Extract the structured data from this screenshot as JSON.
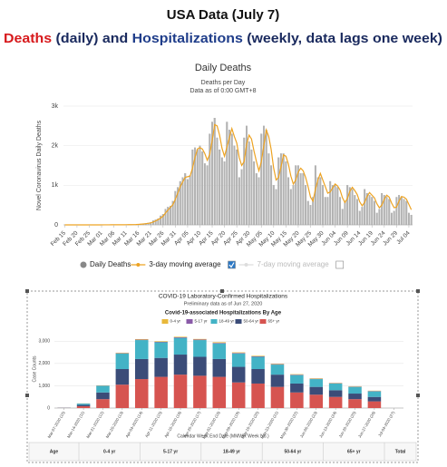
{
  "header": {
    "title": "USA Data (July 7)",
    "subtitle": [
      {
        "text": "Deaths",
        "color": "#d7191c"
      },
      {
        "text": " (daily) and ",
        "color": "#1a2a5e"
      },
      {
        "text": "Hospitalizations",
        "color": "#1f3d8a"
      },
      {
        "text": " (weekly, data lags one week)",
        "color": "#1a2a5e"
      }
    ]
  },
  "chart_data": [
    {
      "type": "bar",
      "title": "Daily Deaths",
      "subtitle": "Deaths per Day",
      "note": "Data as of 0:00 GMT+8",
      "y_label": "Novel Coronavirus Daily Deaths",
      "categories": [
        "Feb 15",
        null,
        null,
        null,
        null,
        "Feb 20",
        null,
        null,
        null,
        null,
        "Feb 25",
        null,
        null,
        null,
        null,
        "Mar 01",
        null,
        null,
        null,
        null,
        "Mar 06",
        null,
        null,
        null,
        null,
        "Mar 11",
        null,
        null,
        null,
        null,
        "Mar 16",
        null,
        null,
        null,
        null,
        "Mar 21",
        null,
        null,
        null,
        null,
        "Mar 26",
        null,
        null,
        null,
        null,
        "Mar 31",
        null,
        null,
        null,
        null,
        "Apr 05",
        null,
        null,
        null,
        null,
        "Apr 10",
        null,
        null,
        null,
        null,
        "Apr 15",
        null,
        null,
        null,
        null,
        "Apr 20",
        null,
        null,
        null,
        null,
        "Apr 25",
        null,
        null,
        null,
        null,
        "Apr 30",
        null,
        null,
        null,
        null,
        "May 05",
        null,
        null,
        null,
        null,
        "May 10",
        null,
        null,
        null,
        null,
        "May 15",
        null,
        null,
        null,
        null,
        "May 20",
        null,
        null,
        null,
        null,
        "May 25",
        null,
        null,
        null,
        null,
        "May 30",
        null,
        null,
        null,
        null,
        "Jun 04",
        null,
        null,
        null,
        null,
        "Jun 09",
        null,
        null,
        null,
        null,
        "Jun 14",
        null,
        null,
        null,
        null,
        "Jun 19",
        null,
        null,
        null,
        null,
        "Jun 24",
        null,
        null,
        null,
        null,
        "Jun 29",
        null,
        null,
        null,
        null,
        "Jul 04",
        null
      ],
      "series": [
        {
          "name": "Daily Deaths",
          "type": "bar",
          "color": "#b3b3b3",
          "checked": true,
          "values": [
            0,
            0,
            0,
            0,
            0,
            0,
            0,
            0,
            0,
            0,
            0,
            0,
            0,
            0,
            1,
            0,
            1,
            2,
            1,
            3,
            2,
            1,
            2,
            4,
            3,
            5,
            7,
            6,
            8,
            10,
            18,
            23,
            28,
            40,
            50,
            60,
            110,
            130,
            160,
            230,
            270,
            400,
            450,
            480,
            600,
            850,
            950,
            1100,
            1200,
            1300,
            1150,
            1250,
            1900,
            1950,
            1900,
            2000,
            1850,
            1550,
            1500,
            2300,
            2600,
            2700,
            2200,
            1900,
            1700,
            1600,
            2600,
            2400,
            2300,
            2000,
            1900,
            1200,
            1400,
            2200,
            2500,
            2100,
            1900,
            1600,
            1300,
            1200,
            2300,
            2500,
            2400,
            1800,
            1500,
            1000,
            900,
            1700,
            1800,
            1800,
            1600,
            1200,
            900,
            1000,
            1500,
            1500,
            1300,
            1300,
            1000,
            600,
            500,
            700,
            1500,
            1200,
            1200,
            1000,
            700,
            700,
            1100,
            1000,
            1000,
            950,
            700,
            400,
            600,
            1000,
            950,
            900,
            750,
            650,
            350,
            450,
            900,
            800,
            750,
            700,
            600,
            300,
            400,
            800,
            750,
            700,
            650,
            300,
            350,
            700,
            750,
            700,
            650,
            600,
            300,
            250
          ]
        },
        {
          "name": "3-day moving average",
          "type": "line",
          "color": "#eda323",
          "checked": true,
          "values": [
            0,
            0,
            0,
            0,
            0,
            0,
            0,
            0,
            0,
            0,
            0,
            0,
            0,
            0,
            0,
            0,
            1,
            1,
            1,
            2,
            2,
            2,
            2,
            2,
            3,
            4,
            5,
            6,
            7,
            8,
            12,
            17,
            23,
            30,
            39,
            50,
            73,
            100,
            133,
            173,
            220,
            300,
            373,
            443,
            510,
            643,
            800,
            967,
            1083,
            1200,
            1217,
            1233,
            1433,
            1700,
            1917,
            1950,
            1917,
            1800,
            1633,
            1783,
            2133,
            2533,
            2500,
            2267,
            1933,
            1733,
            1967,
            2200,
            2433,
            2233,
            2067,
            1700,
            1500,
            1600,
            2033,
            2267,
            2167,
            1867,
            1600,
            1367,
            1600,
            2000,
            2400,
            2233,
            1900,
            1433,
            1133,
            1200,
            1467,
            1767,
            1733,
            1533,
            1233,
            1033,
            1133,
            1333,
            1433,
            1367,
            1200,
            967,
            700,
            600,
            900,
            1133,
            1300,
            1133,
            967,
            800,
            833,
            933,
            1033,
            983,
            883,
            683,
            567,
            667,
            850,
            950,
            867,
            767,
            583,
            483,
            567,
            717,
            817,
            750,
            683,
            533,
            433,
            500,
            650,
            750,
            700,
            550,
            433,
            450,
            600,
            717,
            700,
            650,
            517,
            383
          ]
        }
      ],
      "hidden_series": [
        {
          "name": "7-day moving average",
          "checked": false
        }
      ],
      "ylim": [
        0,
        3000
      ],
      "yticks": [
        0,
        {
          "value": 1000,
          "label": "1k"
        },
        {
          "value": 2000,
          "label": "2k"
        },
        {
          "value": 3000,
          "label": "3k"
        }
      ],
      "grid": true
    },
    {
      "type": "stacked_bar",
      "title": "COVID-19 Laboratory-Confirmed Hospitalizations",
      "subtitle": "Preliminary data as of Jun 27, 2020",
      "legend_title": "Covid-19-associated Hospitalizations By Age",
      "y_label": "Case Counts",
      "x_label": "Calendar Week End Date (MMWR Week No.)",
      "categories": [
        "Mar-07-2020 (10)",
        "Mar-14-2020 (11)",
        "Mar-21-2020 (12)",
        "Mar-28-2020 (13)",
        "Apr-04-2020 (14)",
        "Apr-11-2020 (15)",
        "Apr-18-2020 (16)",
        "Apr-25-2020 (17)",
        "May-02-2020 (18)",
        "May-09-2020 (19)",
        "May-16-2020 (20)",
        "May-23-2020 (21)",
        "May-30-2020 (22)",
        "Jun-06-2020 (23)",
        "Jun-13-2020 (24)",
        "Jun-20-2020 (25)",
        "Jun-27-2020 (26)",
        "Jul-04-2020 (27)"
      ],
      "series": [
        {
          "name": "0-4 yr",
          "color": "#e8b83a",
          "values": [
            0,
            5,
            10,
            20,
            25,
            25,
            25,
            25,
            30,
            25,
            25,
            20,
            20,
            20,
            15,
            15,
            15,
            0
          ]
        },
        {
          "name": "5-17 yr",
          "color": "#8a5aa8",
          "values": [
            0,
            3,
            10,
            15,
            20,
            20,
            25,
            25,
            25,
            25,
            20,
            20,
            20,
            15,
            15,
            15,
            15,
            0
          ]
        },
        {
          "name": "18-49 yr",
          "color": "#43b3c6",
          "values": [
            5,
            60,
            300,
            700,
            850,
            700,
            750,
            750,
            700,
            600,
            550,
            450,
            380,
            350,
            300,
            300,
            250,
            0
          ]
        },
        {
          "name": "50-64 yr",
          "color": "#3b4c78",
          "values": [
            5,
            60,
            300,
            700,
            900,
            850,
            900,
            850,
            800,
            700,
            650,
            550,
            400,
            350,
            300,
            250,
            200,
            0
          ]
        },
        {
          "name": "65+ yr",
          "color": "#d65450",
          "values": [
            10,
            80,
            400,
            1050,
            1300,
            1400,
            1500,
            1450,
            1400,
            1150,
            1100,
            950,
            700,
            600,
            500,
            400,
            300,
            0
          ]
        }
      ],
      "ylim": [
        0,
        3500
      ],
      "yticks": [
        0,
        {
          "value": 1000,
          "label": "1,000"
        },
        {
          "value": 2000,
          "label": "2,000"
        },
        {
          "value": 3000,
          "label": "3,000"
        }
      ],
      "grid": true,
      "table_header": [
        "Age",
        "0-4 yr",
        "5-17 yr",
        "18-49 yr",
        "50-64 yr",
        "65+ yr",
        "Total"
      ]
    }
  ]
}
